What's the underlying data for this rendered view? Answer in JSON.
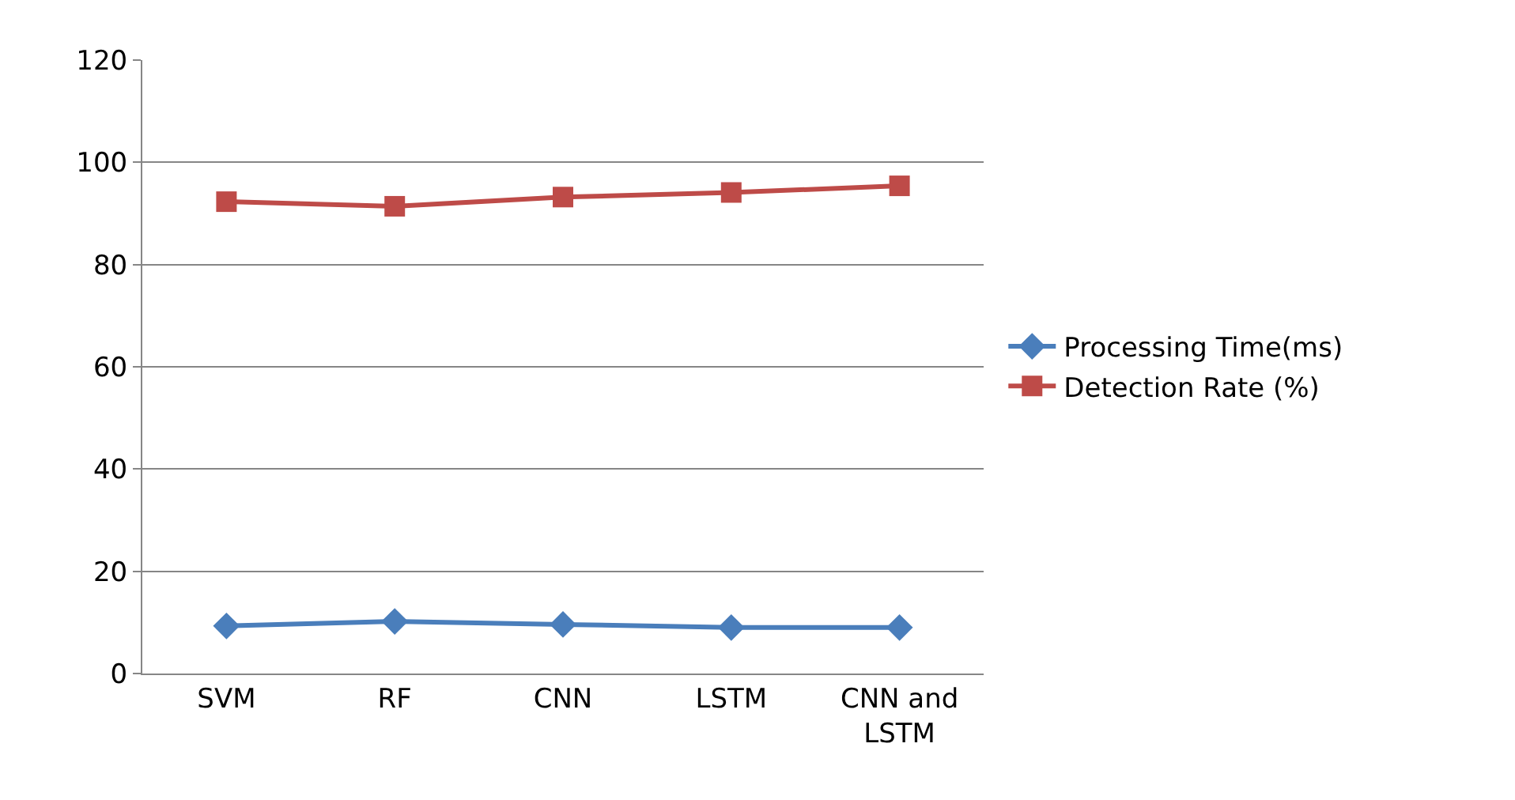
{
  "chart_data": {
    "type": "line",
    "categories": [
      "SVM",
      "RF",
      "CNN",
      "LSTM",
      "CNN and\nLSTM"
    ],
    "series": [
      {
        "name": "Processing Time(ms)",
        "color": "#4a7ebb",
        "marker": "diamond",
        "values": [
          9.3,
          10.2,
          9.6,
          9.0,
          9.0
        ]
      },
      {
        "name": "Detection Rate (%)",
        "color": "#be4b48",
        "marker": "square",
        "values": [
          92.3,
          91.4,
          93.2,
          94.1,
          95.4
        ]
      }
    ],
    "ylim": [
      0,
      120
    ],
    "yticks": [
      0,
      20,
      40,
      60,
      80,
      100,
      120
    ],
    "grid": "y",
    "legend": "right"
  }
}
